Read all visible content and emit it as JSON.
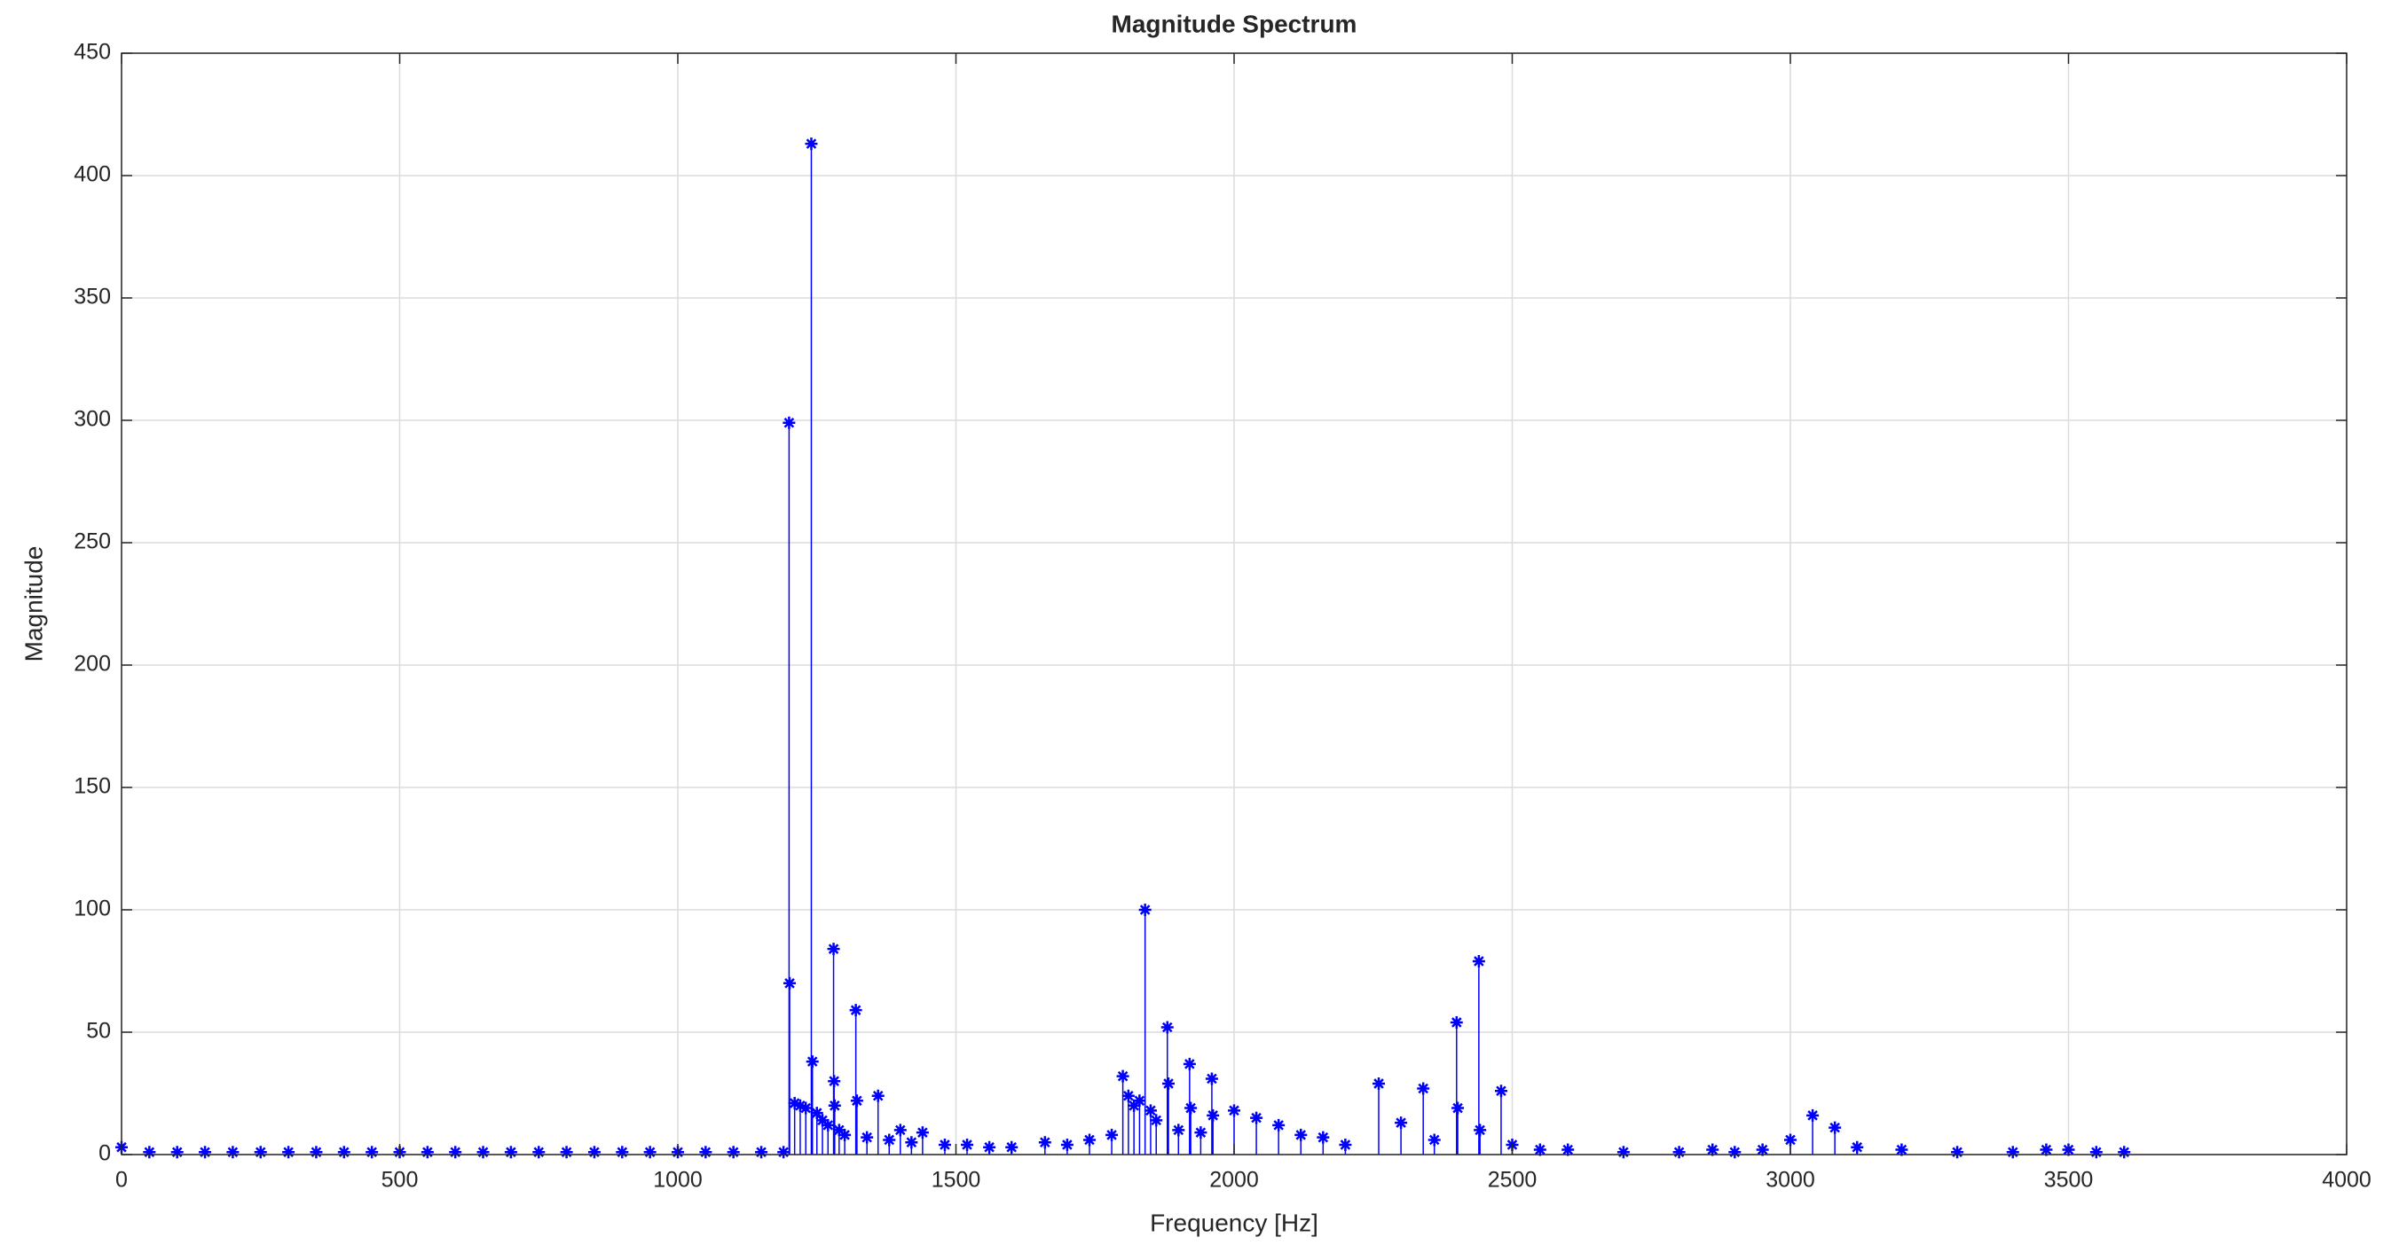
{
  "chart_data": {
    "type": "stem",
    "title": "Magnitude Spectrum",
    "xlabel": "Frequency [Hz]",
    "ylabel": "Magnitude",
    "xlim": [
      0,
      4000
    ],
    "ylim": [
      0,
      450
    ],
    "xticks": [
      0,
      500,
      1000,
      1500,
      2000,
      2500,
      3000,
      3500,
      4000
    ],
    "yticks": [
      0,
      50,
      100,
      150,
      200,
      250,
      300,
      350,
      400,
      450
    ],
    "grid": true,
    "series": [
      {
        "color": "#0000ff",
        "x": [
          0,
          50,
          100,
          150,
          200,
          250,
          300,
          350,
          400,
          450,
          500,
          550,
          600,
          650,
          700,
          750,
          800,
          850,
          900,
          950,
          1000,
          1050,
          1100,
          1150,
          1190,
          1200,
          1201,
          1210,
          1220,
          1230,
          1240,
          1242,
          1250,
          1260,
          1270,
          1280,
          1281,
          1282,
          1290,
          1300,
          1320,
          1322,
          1340,
          1360,
          1380,
          1400,
          1420,
          1440,
          1480,
          1520,
          1560,
          1600,
          1660,
          1700,
          1740,
          1780,
          1800,
          1810,
          1820,
          1830,
          1840,
          1850,
          1860,
          1880,
          1882,
          1900,
          1920,
          1922,
          1940,
          1960,
          1962,
          2000,
          2040,
          2080,
          2120,
          2160,
          2200,
          2260,
          2300,
          2340,
          2360,
          2400,
          2402,
          2440,
          2442,
          2480,
          2500,
          2550,
          2600,
          2700,
          2800,
          2860,
          2900,
          2950,
          3000,
          3040,
          3080,
          3120,
          3200,
          3300,
          3400,
          3460,
          3500,
          3550,
          3600
        ],
        "values": [
          3,
          1,
          1,
          1,
          1,
          1,
          1,
          1,
          1,
          1,
          1,
          1,
          1,
          1,
          1,
          1,
          1,
          1,
          1,
          1,
          1,
          1,
          1,
          1,
          1,
          299,
          70,
          21,
          20,
          19,
          413,
          38,
          17,
          14,
          12,
          84,
          30,
          20,
          10,
          8,
          59,
          22,
          7,
          24,
          6,
          10,
          5,
          9,
          4,
          4,
          3,
          3,
          5,
          4,
          6,
          8,
          32,
          24,
          20,
          22,
          100,
          18,
          14,
          52,
          29,
          10,
          37,
          19,
          9,
          31,
          16,
          18,
          15,
          12,
          8,
          7,
          4,
          29,
          13,
          27,
          6,
          54,
          19,
          79,
          10,
          26,
          4,
          2,
          2,
          1,
          1,
          2,
          1,
          2,
          6,
          16,
          11,
          3,
          2,
          1,
          1,
          2,
          2,
          1,
          1
        ]
      }
    ]
  }
}
